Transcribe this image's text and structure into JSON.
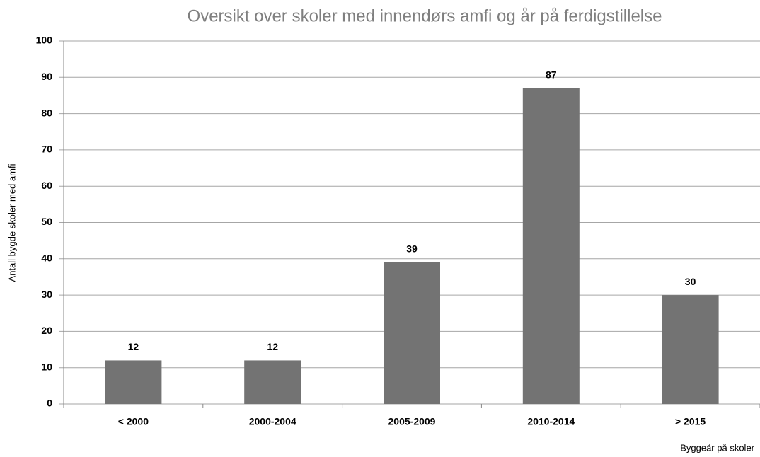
{
  "chart_data": {
    "type": "bar",
    "title": "Oversikt over skoler med innendørs amfi og år på ferdigstillelse",
    "x_label": "Byggeår på skoler",
    "y_label": "Antall bygde skoler med amfi",
    "categories": [
      "< 2000",
      "2000-2004",
      "2005-2009",
      "2010-2014",
      "> 2015"
    ],
    "values": [
      12,
      12,
      39,
      87,
      30
    ],
    "color": "#737373",
    "ylim": [
      0,
      100
    ],
    "yticks": [
      0,
      10,
      20,
      30,
      40,
      50,
      60,
      70,
      80,
      90,
      100
    ],
    "grid": true
  }
}
